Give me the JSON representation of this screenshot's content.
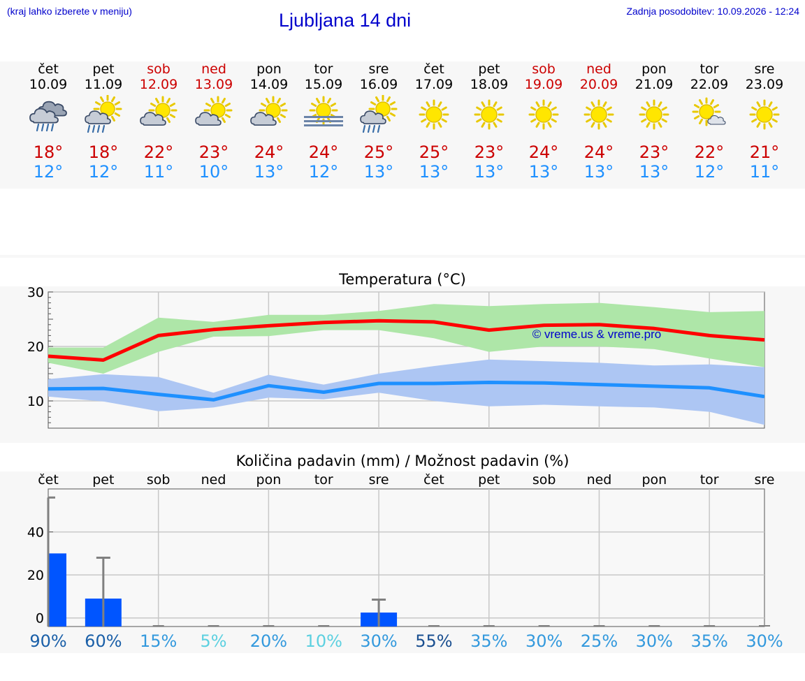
{
  "header": {
    "menu_hint": "(kraj lahko izberete v meniju)",
    "title": "Ljubljana 14 dni",
    "updated": "Zadnja posodobitev: 10.09.2026 - 12:24"
  },
  "days": [
    {
      "name": "čet",
      "date": "10.09",
      "weekend": false,
      "icon": "cloud-rain-icon",
      "tmax": "18°",
      "tmin": "12°"
    },
    {
      "name": "pet",
      "date": "11.09",
      "weekend": false,
      "icon": "sun-cloud-rain-icon",
      "tmax": "18°",
      "tmin": "12°"
    },
    {
      "name": "sob",
      "date": "12.09",
      "weekend": true,
      "icon": "sun-cloud-icon",
      "tmax": "22°",
      "tmin": "11°"
    },
    {
      "name": "ned",
      "date": "13.09",
      "weekend": true,
      "icon": "sun-cloud-icon",
      "tmax": "23°",
      "tmin": "10°"
    },
    {
      "name": "pon",
      "date": "14.09",
      "weekend": false,
      "icon": "sun-cloud-icon",
      "tmax": "24°",
      "tmin": "13°"
    },
    {
      "name": "tor",
      "date": "15.09",
      "weekend": false,
      "icon": "sun-fog-icon",
      "tmax": "24°",
      "tmin": "12°"
    },
    {
      "name": "sre",
      "date": "16.09",
      "weekend": false,
      "icon": "sun-cloud-rain-icon",
      "tmax": "25°",
      "tmin": "13°"
    },
    {
      "name": "čet",
      "date": "17.09",
      "weekend": false,
      "icon": "sun-icon",
      "tmax": "25°",
      "tmin": "13°"
    },
    {
      "name": "pet",
      "date": "18.09",
      "weekend": false,
      "icon": "sun-icon",
      "tmax": "23°",
      "tmin": "13°"
    },
    {
      "name": "sob",
      "date": "19.09",
      "weekend": true,
      "icon": "sun-icon",
      "tmax": "24°",
      "tmin": "13°"
    },
    {
      "name": "ned",
      "date": "20.09",
      "weekend": true,
      "icon": "sun-icon",
      "tmax": "24°",
      "tmin": "13°"
    },
    {
      "name": "pon",
      "date": "21.09",
      "weekend": false,
      "icon": "sun-icon",
      "tmax": "23°",
      "tmin": "13°"
    },
    {
      "name": "tor",
      "date": "22.09",
      "weekend": false,
      "icon": "sun-small-cloud-icon",
      "tmax": "22°",
      "tmin": "12°"
    },
    {
      "name": "sre",
      "date": "23.09",
      "weekend": false,
      "icon": "sun-icon",
      "tmax": "21°",
      "tmin": "11°"
    }
  ],
  "colors": {
    "max_line": "#ff0000",
    "max_band": "#aee6a8",
    "min_line": "#1e90ff",
    "min_band": "#adc6f3",
    "bar": "#0055ff",
    "error_bar": "#808080"
  },
  "chart_data": [
    {
      "type": "line",
      "title": "Temperatura (°C)",
      "watermark": "© vreme.us & vreme.pro",
      "x": [
        0,
        1,
        2,
        3,
        4,
        5,
        6,
        7,
        8,
        9,
        10,
        11,
        12,
        13
      ],
      "ylim": [
        5,
        30
      ],
      "yticks": [
        10,
        20,
        30
      ],
      "grid": true,
      "series": [
        {
          "role": "max",
          "values": [
            18.2,
            17.5,
            22.0,
            23.1,
            23.8,
            24.4,
            24.7,
            24.5,
            23.0,
            23.9,
            24.0,
            23.3,
            22.0,
            21.2
          ]
        },
        {
          "role": "max_high",
          "values": [
            19.8,
            19.8,
            25.3,
            24.5,
            25.8,
            25.8,
            26.5,
            27.8,
            27.4,
            27.8,
            28.0,
            27.2,
            26.3,
            26.5
          ]
        },
        {
          "role": "max_low",
          "values": [
            17.0,
            15.0,
            19.0,
            21.8,
            21.9,
            23.0,
            23.0,
            21.5,
            19.0,
            20.0,
            20.0,
            19.5,
            17.8,
            16.2
          ]
        },
        {
          "role": "min",
          "values": [
            12.2,
            12.3,
            11.2,
            10.2,
            12.8,
            11.6,
            13.2,
            13.2,
            13.4,
            13.3,
            13.0,
            12.7,
            12.4,
            10.8
          ]
        },
        {
          "role": "min_high",
          "values": [
            14.0,
            14.9,
            14.4,
            11.5,
            14.8,
            13.0,
            15.0,
            16.4,
            17.6,
            17.3,
            17.0,
            16.5,
            16.7,
            16.2
          ]
        },
        {
          "role": "min_low",
          "values": [
            10.8,
            9.9,
            8.1,
            8.8,
            10.6,
            10.3,
            11.5,
            10.0,
            9.0,
            9.3,
            9.0,
            8.8,
            8.0,
            5.6
          ]
        }
      ]
    },
    {
      "type": "bar",
      "title": "Količina padavin (mm) / Možnost padavin (%)",
      "categories": [
        "čet",
        "pet",
        "sob",
        "ned",
        "pon",
        "tor",
        "sre",
        "čet",
        "pet",
        "sob",
        "ned",
        "pon",
        "tor",
        "sre"
      ],
      "ylim": [
        -4,
        60
      ],
      "yticks": [
        0,
        20,
        40
      ],
      "grid": true,
      "values": [
        30,
        9,
        0,
        0,
        0,
        0,
        2.5,
        0,
        0,
        0,
        0,
        0,
        0,
        0
      ],
      "error_high": [
        56,
        28,
        0,
        0,
        0,
        0,
        8.5,
        0,
        0,
        0,
        0,
        0,
        0,
        0
      ],
      "probability": [
        "90%",
        "60%",
        "15%",
        "5%",
        "20%",
        "10%",
        "30%",
        "55%",
        "35%",
        "30%",
        "25%",
        "30%",
        "35%",
        "30%"
      ],
      "probability_colors": [
        "#1a5fa8",
        "#1a5fa8",
        "#3399dd",
        "#5cd0e0",
        "#3399dd",
        "#5cd0e0",
        "#3399dd",
        "#1a4f90",
        "#3399dd",
        "#3399dd",
        "#3399dd",
        "#3399dd",
        "#3399dd",
        "#3399dd"
      ]
    }
  ]
}
